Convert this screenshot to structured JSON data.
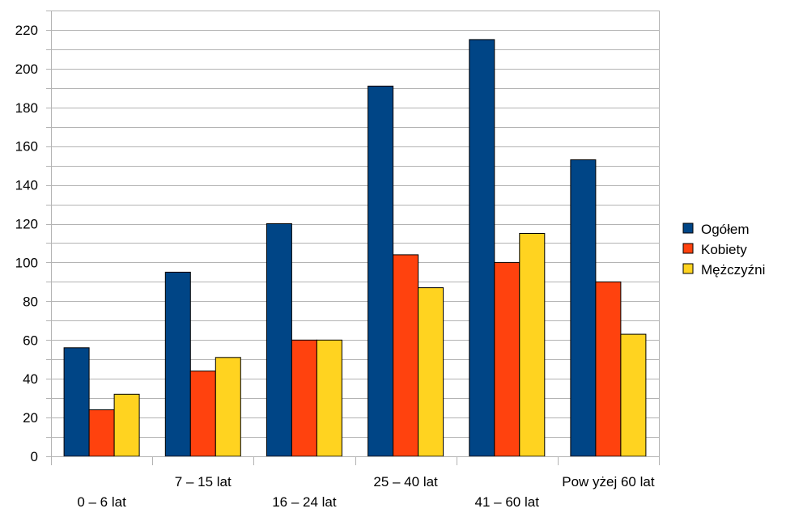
{
  "chart_data": {
    "type": "bar",
    "title": "",
    "xlabel": "",
    "ylabel": "",
    "categories": [
      "0 – 6 lat",
      "7 – 15 lat",
      "16 – 24 lat",
      "25 – 40 lat",
      "41 – 60 lat",
      "Pow yżej 60 lat"
    ],
    "series": [
      {
        "name": "Ogółem",
        "color": "#004586",
        "values": [
          56,
          95,
          120,
          191,
          215,
          153
        ]
      },
      {
        "name": "Kobiety",
        "color": "#ff420e",
        "values": [
          24,
          44,
          60,
          104,
          100,
          90
        ]
      },
      {
        "name": "Mężczyźni",
        "color": "#ffd320",
        "values": [
          32,
          51,
          60,
          87,
          115,
          63
        ]
      }
    ],
    "ylim": [
      0,
      230
    ],
    "yticks": [
      0,
      20,
      40,
      60,
      80,
      100,
      120,
      140,
      160,
      180,
      200,
      220
    ],
    "minor_gridlines_every": 10,
    "grid": true,
    "legend_position": "right"
  }
}
